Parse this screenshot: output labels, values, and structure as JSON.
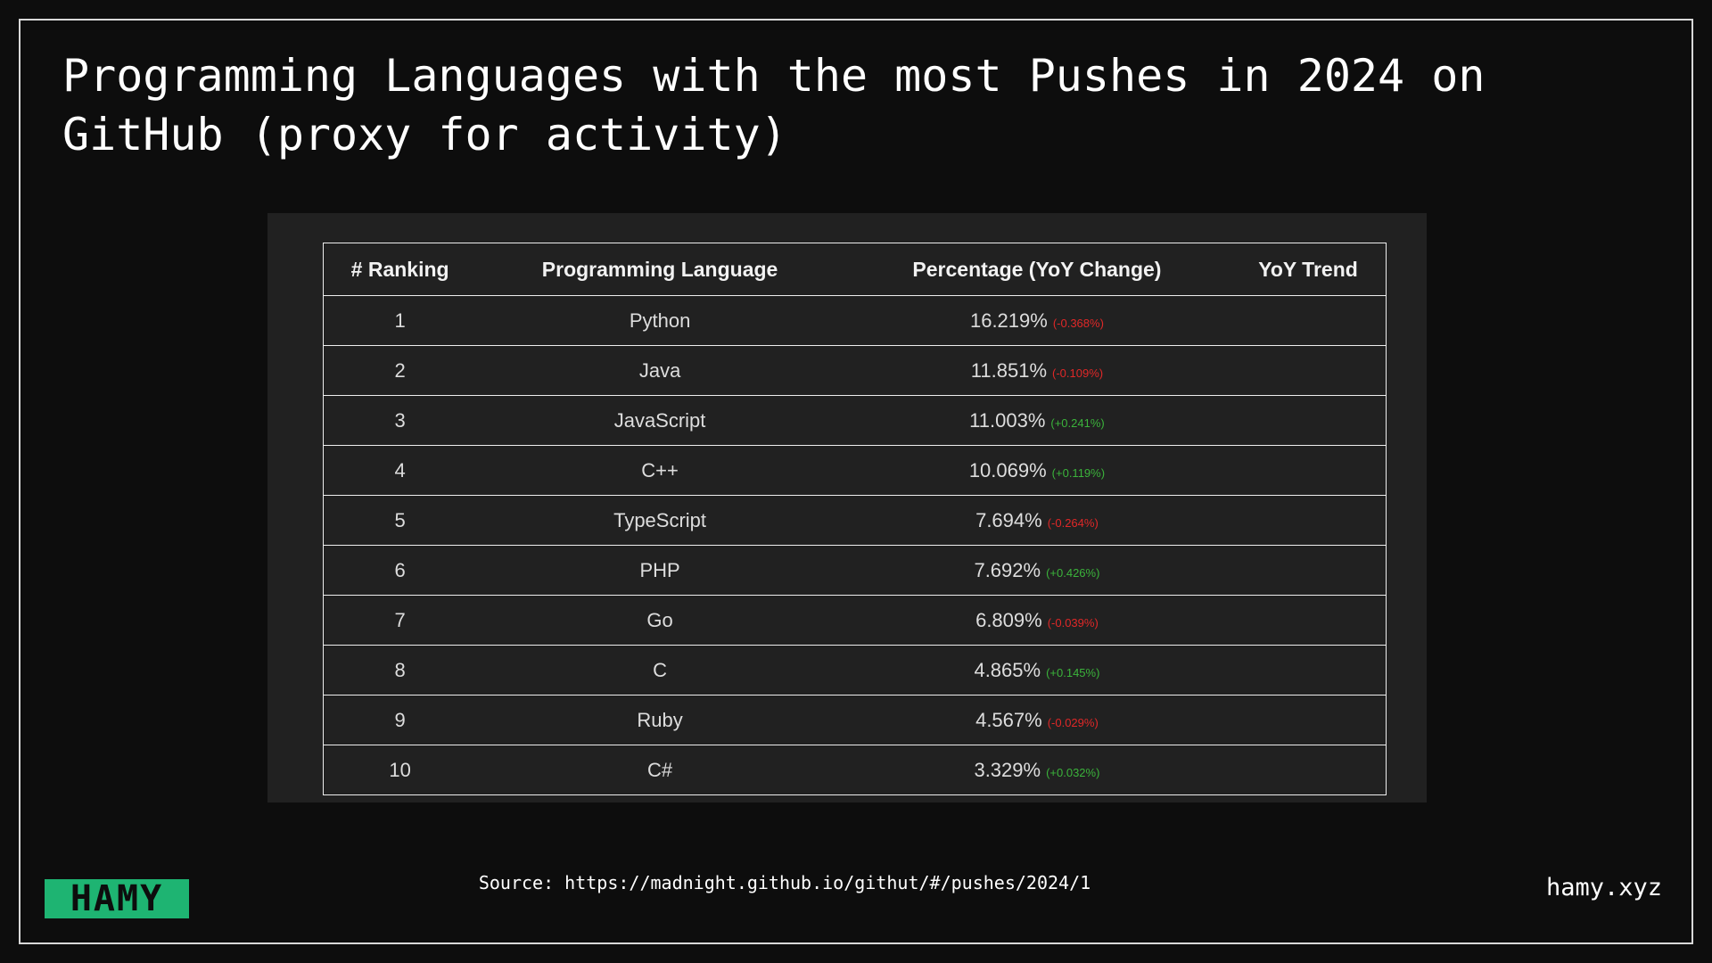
{
  "header": {
    "title": "Programming Languages with the most Pushes in 2024 on GitHub (proxy for activity)"
  },
  "table": {
    "columns": [
      "# Ranking",
      "Programming Language",
      "Percentage (YoY Change)",
      "YoY Trend"
    ],
    "rows": [
      {
        "rank": "1",
        "language": "Python",
        "percentage": "16.219%",
        "change": "(-0.368%)"
      },
      {
        "rank": "2",
        "language": "Java",
        "percentage": "11.851%",
        "change": "(-0.109%)"
      },
      {
        "rank": "3",
        "language": "JavaScript",
        "percentage": "11.003%",
        "change": "(+0.241%)"
      },
      {
        "rank": "4",
        "language": "C++",
        "percentage": "10.069%",
        "change": "(+0.119%)"
      },
      {
        "rank": "5",
        "language": "TypeScript",
        "percentage": "7.694%",
        "change": "(-0.264%)"
      },
      {
        "rank": "6",
        "language": "PHP",
        "percentage": "7.692%",
        "change": "(+0.426%)"
      },
      {
        "rank": "7",
        "language": "Go",
        "percentage": "6.809%",
        "change": "(-0.039%)"
      },
      {
        "rank": "8",
        "language": "C",
        "percentage": "4.865%",
        "change": "(+0.145%)"
      },
      {
        "rank": "9",
        "language": "Ruby",
        "percentage": "4.567%",
        "change": "(-0.029%)"
      },
      {
        "rank": "10",
        "language": "C#",
        "percentage": "3.329%",
        "change": "(+0.032%)"
      }
    ]
  },
  "footer": {
    "logo": "HAMY",
    "source": "Source: https://madnight.github.io/githut/#/pushes/2024/1",
    "site": "hamy.xyz"
  }
}
